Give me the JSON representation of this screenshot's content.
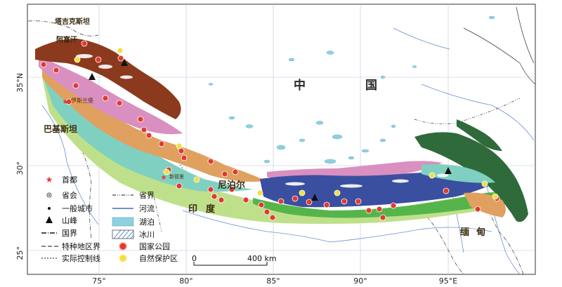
{
  "map": {
    "countries": {
      "china": [
        "中",
        "国"
      ],
      "india": [
        "印",
        "度"
      ],
      "nepal": "尼泊尔",
      "pakistan": "巴基斯坦",
      "myanmar": [
        "缅",
        "甸"
      ],
      "tajikistan": "塔吉克斯坦",
      "afghanistan": "阿富汗"
    },
    "places": {
      "capital_islamabad": "伊斯兰堡",
      "capital_new_delhi": "新德里"
    },
    "lat_ticks": [
      "25°",
      "30°",
      "35°N"
    ],
    "lon_ticks": [
      "75°",
      "80°",
      "85°",
      "90°",
      "95°E"
    ],
    "scale": {
      "zero": "0",
      "max": "400 km"
    },
    "legend": {
      "capital": "首都",
      "provincial_capital": "省会",
      "city": "一般城市",
      "peak": "山峰",
      "national_border": "国界",
      "special_region_border": "特种地区界",
      "line_of_control": "实际控制线",
      "provincial_border": "省界",
      "river": "河流",
      "lake": "湖泊",
      "glacier": "冰川",
      "national_park": "国家公园",
      "nature_reserve": "自然保护区"
    },
    "colors": {
      "brown_zone": "#8b3a1e",
      "orange_zone": "#e0a060",
      "pink_zone": "#d990c0",
      "teal_zone": "#7fd0c0",
      "light_green_zone": "#bfe08a",
      "green_zone": "#55b54a",
      "dark_green_zone": "#2f6b3a",
      "blue_zone": "#3a4fa0",
      "lake": "#8fd0e0",
      "park_marker": "#e03a30",
      "reserve_marker": "#f0e040"
    }
  }
}
